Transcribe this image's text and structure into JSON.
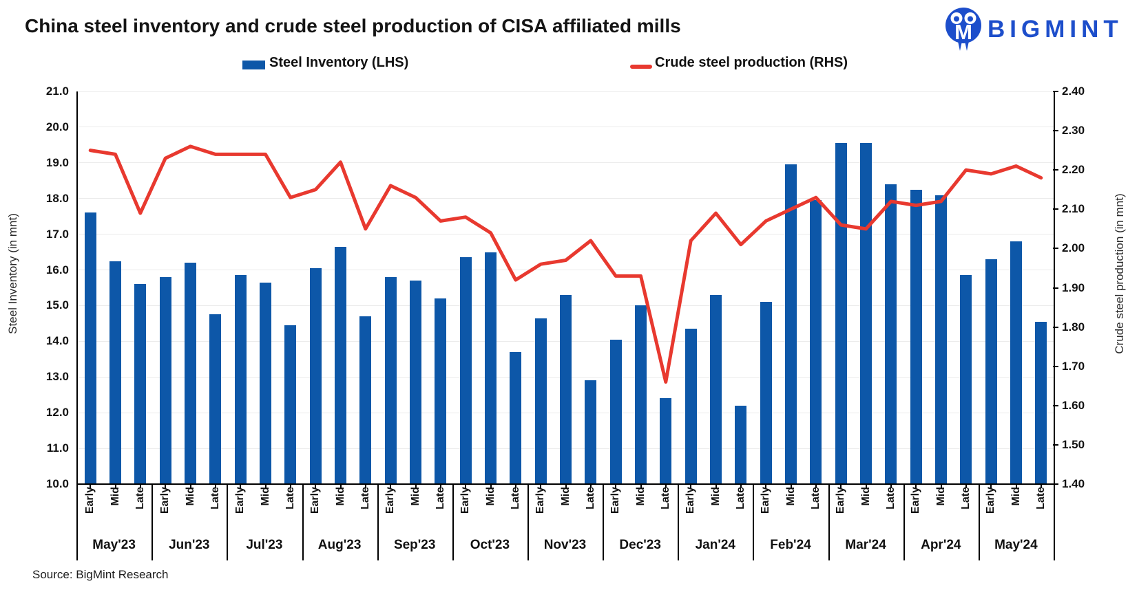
{
  "header": {
    "title": "China steel inventory and crude steel production of CISA affiliated mills",
    "brand": "BIGMINT"
  },
  "legend": {
    "bar": "Steel Inventory (LHS)",
    "line": "Crude steel production (RHS)"
  },
  "source_note": "Source: BigMint Research",
  "colors": {
    "bar_blue": "#0d57a8",
    "line_red": "#e8392f",
    "brand_blue": "#1d4ecb",
    "grid_gray": "#ebebeb",
    "axis_black": "#000000"
  },
  "chart_data": {
    "type": "combo_bar_line",
    "title": "China steel inventory and crude steel production of CISA affiliated mills",
    "months": [
      "May'23",
      "Jun'23",
      "Jul'23",
      "Aug'23",
      "Sep'23",
      "Oct'23",
      "Nov'23",
      "Dec'23",
      "Jan'24",
      "Feb'24",
      "Mar'24",
      "Apr'24",
      "May'24"
    ],
    "periods": [
      "Early",
      "Mid",
      "Late"
    ],
    "series": [
      {
        "name": "Steel Inventory (LHS)",
        "type": "bar",
        "axis": "left",
        "values": [
          17.6,
          16.25,
          15.6,
          15.8,
          16.2,
          14.75,
          15.85,
          15.65,
          14.45,
          16.05,
          16.65,
          14.7,
          15.8,
          15.7,
          15.2,
          16.35,
          16.5,
          13.7,
          14.65,
          15.3,
          12.9,
          14.05,
          15.0,
          12.4,
          14.35,
          15.3,
          12.2,
          15.1,
          18.95,
          17.95,
          19.55,
          19.55,
          18.4,
          18.25,
          18.1,
          15.85,
          16.3,
          16.8,
          14.55
        ]
      },
      {
        "name": "Crude steel production (RHS)",
        "type": "line",
        "axis": "right",
        "values": [
          2.25,
          2.24,
          2.09,
          2.23,
          2.26,
          2.24,
          2.24,
          2.24,
          2.13,
          2.15,
          2.22,
          2.05,
          2.16,
          2.13,
          2.07,
          2.08,
          2.04,
          1.92,
          1.96,
          1.97,
          2.02,
          1.93,
          1.93,
          1.66,
          2.02,
          2.09,
          2.01,
          2.07,
          2.1,
          2.13,
          2.06,
          2.05,
          2.12,
          2.11,
          2.12,
          2.2,
          2.19,
          2.21,
          2.18
        ]
      }
    ],
    "left_axis": {
      "title": "Steel Inventory (in mnt)",
      "min": 10.0,
      "max": 21.0,
      "step": 1.0,
      "ticks": [
        "10.0",
        "11.0",
        "12.0",
        "13.0",
        "14.0",
        "15.0",
        "16.0",
        "17.0",
        "18.0",
        "19.0",
        "20.0",
        "21.0"
      ]
    },
    "right_axis": {
      "title": "Crude steel production (in mnt)",
      "min": 1.4,
      "max": 2.4,
      "step": 0.1,
      "ticks": [
        "1.40",
        "1.50",
        "1.60",
        "1.70",
        "1.80",
        "1.90",
        "2.00",
        "2.10",
        "2.20",
        "2.30",
        "2.40"
      ]
    },
    "grid": true,
    "legend_position": "top"
  }
}
